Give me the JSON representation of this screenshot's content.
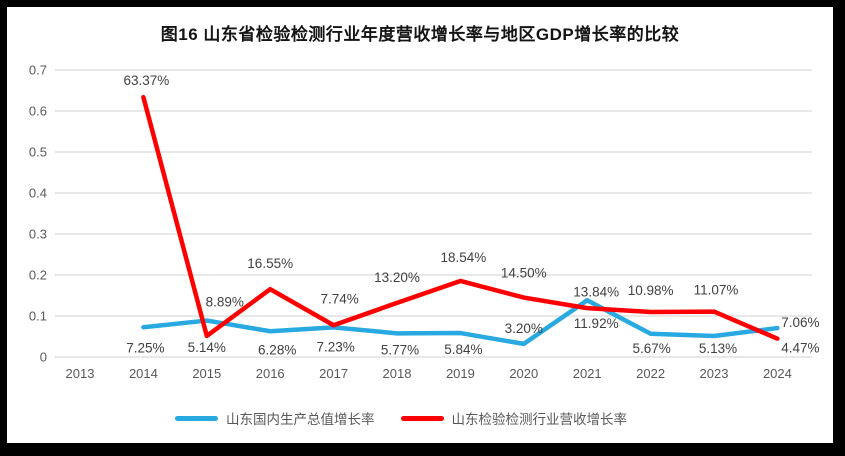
{
  "title": "图16  山东省检验检测行业年度营收增长率与地区GDP增长率的比较",
  "colors": {
    "page_background": "#000000",
    "chart_background": "#FFFFFF",
    "gridline": "#D9D9D9",
    "tick_text": "#595959",
    "data_label_text": "#404040",
    "title_text": "#141414",
    "gdp_series": "#29A9E1",
    "industry_series": "#FE0000"
  },
  "chart_data": {
    "type": "line",
    "title": "图16  山东省检验检测行业年度营收增长率与地区GDP增长率的比较",
    "x": [
      "2013",
      "2014",
      "2015",
      "2016",
      "2017",
      "2018",
      "2019",
      "2020",
      "2021",
      "2022",
      "2023",
      "2024"
    ],
    "xlabel": "",
    "ylabel": "",
    "ylim": [
      0,
      0.7
    ],
    "yticks": [
      "0",
      "0.1",
      "0.2",
      "0.3",
      "0.4",
      "0.5",
      "0.6",
      "0.7"
    ],
    "grid": true,
    "legend_position": "bottom",
    "series": [
      {
        "name": "山东国内生产总值增长率",
        "color": "#29A9E1",
        "first_x": "2014",
        "values": [
          0.0725,
          0.0889,
          0.0628,
          0.0723,
          0.0577,
          0.0584,
          0.032,
          0.1384,
          0.0567,
          0.0513,
          0.0706
        ],
        "labels": [
          "7.25%",
          "8.89%",
          "6.28%",
          "7.23%",
          "5.77%",
          "5.84%",
          "3.20%",
          "13.84%",
          "5.67%",
          "5.13%",
          "7.06%"
        ]
      },
      {
        "name": "山东检验检测行业营收增长率",
        "color": "#FE0000",
        "first_x": "2014",
        "values": [
          0.6337,
          0.0514,
          0.1655,
          0.0774,
          0.132,
          0.1854,
          0.145,
          0.1192,
          0.1098,
          0.1107,
          0.0447
        ],
        "labels": [
          "63.37%",
          "5.14%",
          "16.55%",
          "7.74%",
          "13.20%",
          "18.54%",
          "14.50%",
          "11.92%",
          "10.98%",
          "11.07%",
          "4.47%"
        ]
      }
    ]
  }
}
